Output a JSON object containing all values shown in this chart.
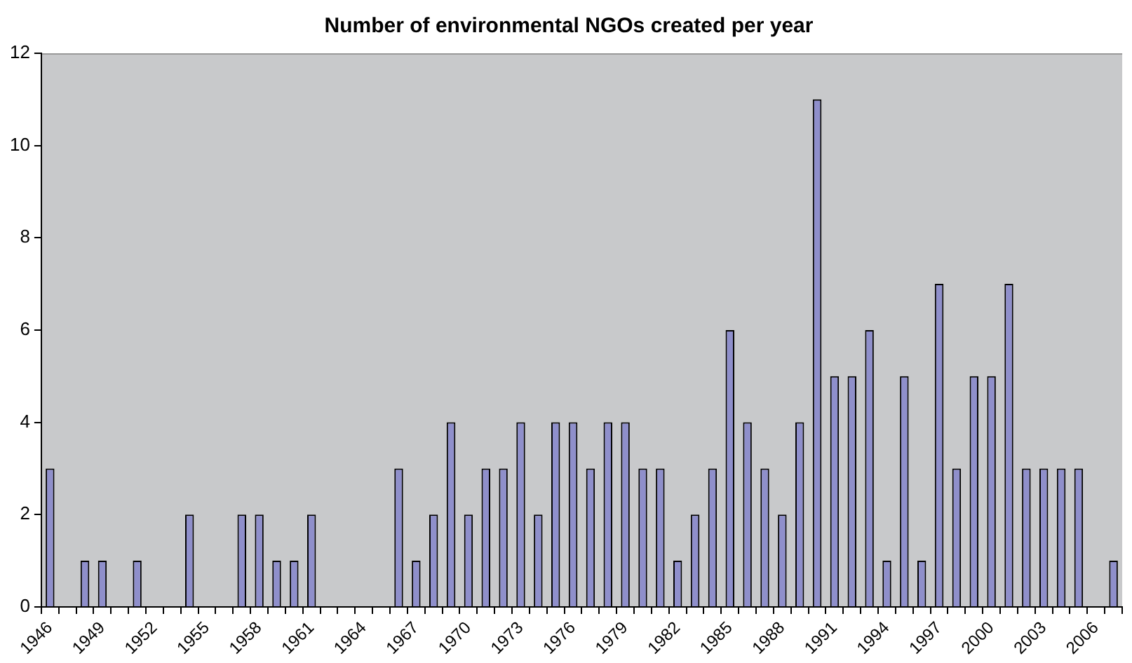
{
  "chart_data": {
    "type": "bar",
    "title": "Number of environmental NGOs created per year",
    "categories": [
      "1946",
      null,
      null,
      "1949",
      null,
      null,
      "1952",
      null,
      null,
      "1955",
      null,
      null,
      "1958",
      null,
      null,
      "1961",
      null,
      null,
      "1964",
      null,
      null,
      "1967",
      null,
      null,
      "1970",
      null,
      null,
      "1973",
      null,
      null,
      "1976",
      null,
      null,
      "1979",
      null,
      null,
      "1982",
      null,
      null,
      "1985",
      null,
      null,
      "1988",
      null,
      null,
      "1991",
      null,
      null,
      "1994",
      null,
      null,
      "1997",
      null,
      null,
      "2000",
      null,
      null,
      "2003",
      null,
      null,
      "2006",
      null
    ],
    "values": [
      3,
      0,
      1,
      1,
      0,
      1,
      0,
      0,
      2,
      0,
      0,
      2,
      2,
      1,
      1,
      2,
      0,
      0,
      0,
      0,
      3,
      1,
      2,
      4,
      2,
      3,
      3,
      4,
      2,
      4,
      4,
      3,
      4,
      4,
      3,
      3,
      1,
      2,
      3,
      6,
      4,
      3,
      2,
      4,
      11,
      5,
      5,
      6,
      1,
      5,
      1,
      7,
      3,
      5,
      5,
      7,
      3,
      3,
      3,
      3,
      0,
      1
    ],
    "color": "#8f8fcb",
    "ylim": [
      0,
      12
    ],
    "yticks": [
      0,
      2,
      4,
      6,
      8,
      10,
      12
    ],
    "grid": false,
    "legend": false
  }
}
